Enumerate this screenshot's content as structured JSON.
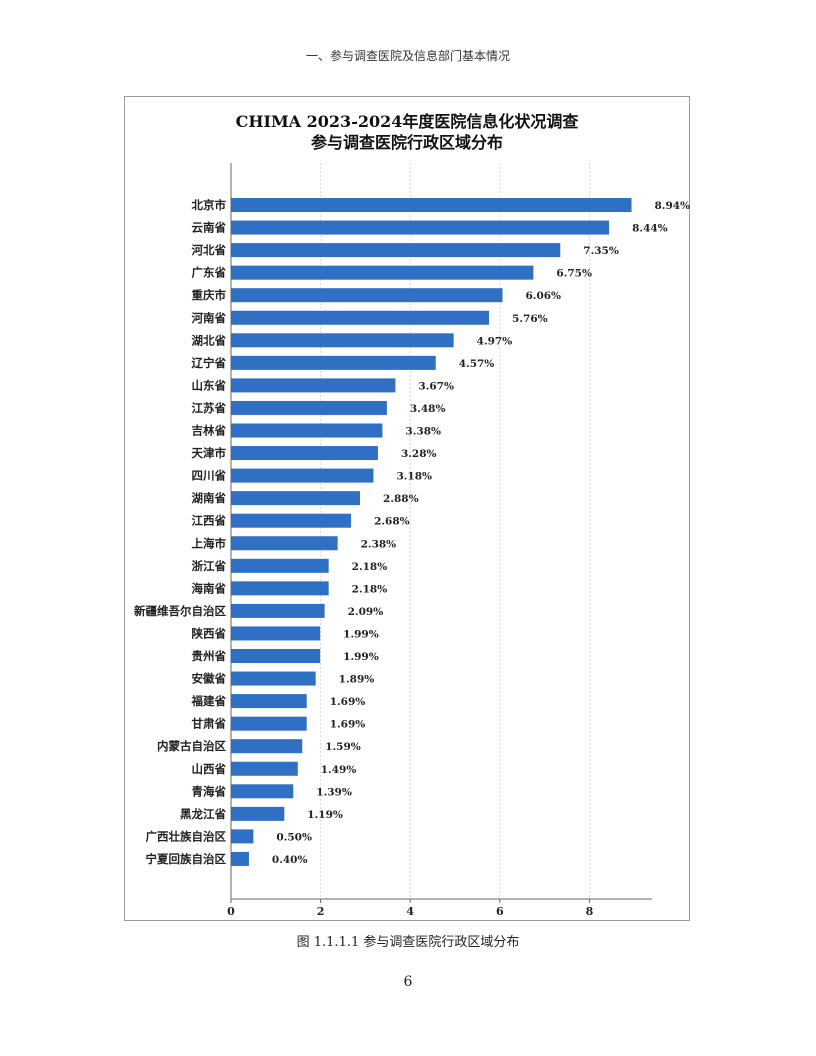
{
  "header": "一、参与调查医院及信息部门基本情况",
  "caption": "图 1.1.1.1  参与调查医院行政区域分布",
  "page_number": "6",
  "chart_data": {
    "type": "bar",
    "orientation": "horizontal",
    "title": "CHIMA 2023-2024年度医院信息化状况调查",
    "subtitle": "参与调查医院行政区域分布",
    "xlabel": "",
    "ylabel": "",
    "xlim": [
      0,
      9.3
    ],
    "xticks": [
      0,
      2,
      4,
      6,
      8
    ],
    "grid": true,
    "bar_color": "#2f6fc4",
    "categories": [
      "北京市",
      "云南省",
      "河北省",
      "广东省",
      "重庆市",
      "河南省",
      "湖北省",
      "辽宁省",
      "山东省",
      "江苏省",
      "吉林省",
      "天津市",
      "四川省",
      "湖南省",
      "江西省",
      "上海市",
      "浙江省",
      "海南省",
      "新疆维吾尔自治区",
      "陕西省",
      "贵州省",
      "安徽省",
      "福建省",
      "甘肃省",
      "内蒙古自治区",
      "山西省",
      "青海省",
      "黑龙江省",
      "广西壮族自治区",
      "宁夏回族自治区"
    ],
    "values": [
      8.94,
      8.44,
      7.35,
      6.75,
      6.06,
      5.76,
      4.97,
      4.57,
      3.67,
      3.48,
      3.38,
      3.28,
      3.18,
      2.88,
      2.68,
      2.38,
      2.18,
      2.18,
      2.09,
      1.99,
      1.99,
      1.89,
      1.69,
      1.69,
      1.59,
      1.49,
      1.39,
      1.19,
      0.5,
      0.4
    ],
    "value_labels": [
      "8.94%",
      "8.44%",
      "7.35%",
      "6.75%",
      "6.06%",
      "5.76%",
      "4.97%",
      "4.57%",
      "3.67%",
      "3.48%",
      "3.38%",
      "3.28%",
      "3.18%",
      "2.88%",
      "2.68%",
      "2.38%",
      "2.18%",
      "2.18%",
      "2.09%",
      "1.99%",
      "1.99%",
      "1.89%",
      "1.69%",
      "1.69%",
      "1.59%",
      "1.49%",
      "1.39%",
      "1.19%",
      "0.50%",
      "0.40%"
    ]
  }
}
